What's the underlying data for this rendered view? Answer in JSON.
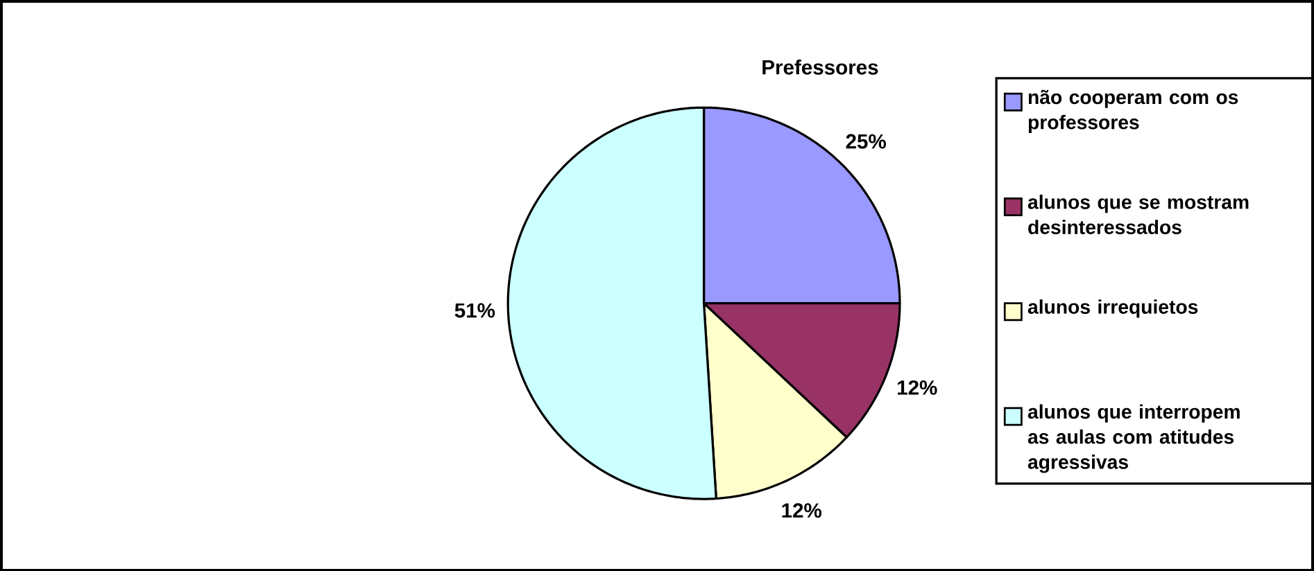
{
  "chart_data": {
    "type": "pie",
    "title": "Prefessores",
    "categories": [
      "não cooperam com os professores",
      "alunos que se mostram desinteressados",
      "alunos irrequietos",
      "alunos que interropem as aulas com atitudes agressivas"
    ],
    "values": [
      25,
      12,
      12,
      51
    ],
    "value_labels": [
      "25%",
      "12%",
      "12%",
      "51%"
    ],
    "colors": [
      "#9999ff",
      "#993366",
      "#ffffcc",
      "#ccffff"
    ],
    "legend": "right"
  }
}
